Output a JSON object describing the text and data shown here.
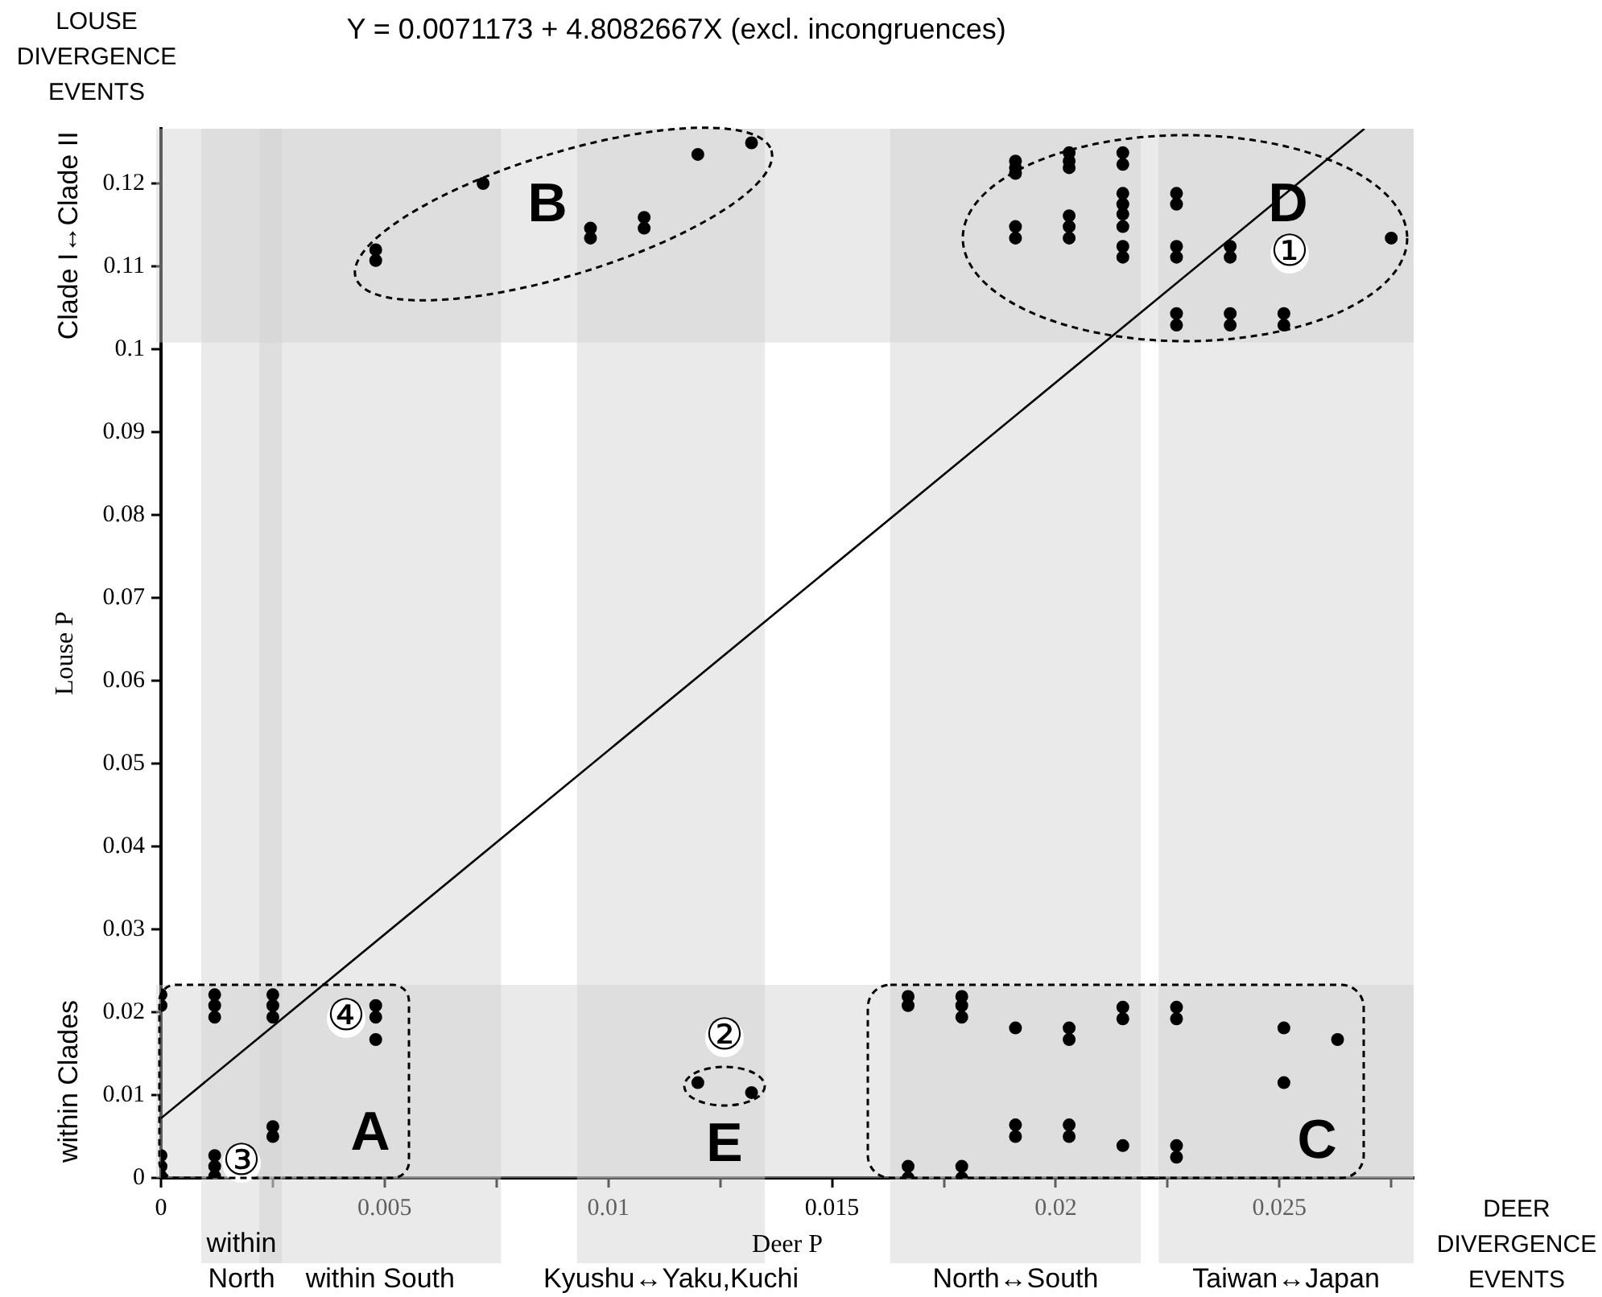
{
  "chart_data": {
    "type": "scatter",
    "title": "Y = 0.0071173 + 4.8082667X (excl. incongruences)",
    "xlabel": "Deer P",
    "ylabel": "Louse P",
    "xlim": [
      0,
      0.028
    ],
    "ylim": [
      0,
      0.1266
    ],
    "xticks": [
      0,
      {
        "value": 0.0025,
        "label": null
      },
      0.005,
      {
        "value": 0.0075,
        "label": null
      },
      0.01,
      {
        "value": 0.0125,
        "label": null
      },
      0.015,
      {
        "value": 0.0175,
        "label": null
      },
      0.02,
      {
        "value": 0.0225,
        "label": null
      },
      0.025,
      {
        "value": 0.0275,
        "label": null
      }
    ],
    "yticks": [
      0,
      0.01,
      0.02,
      0.03,
      0.04,
      0.05,
      0.06,
      0.07,
      0.08,
      0.09,
      0.1,
      0.11,
      0.12
    ],
    "grid": false,
    "legend": false,
    "marker": "circle",
    "series": [
      {
        "color": "#000000",
        "x": [
          0.0048,
          0.0048,
          0.0072,
          0.0096,
          0.0096,
          0.0108,
          0.0108,
          0.012,
          0.0132,
          0.0191,
          0.0191,
          0.0191,
          0.0191,
          0.0191,
          0.0203,
          0.0203,
          0.0203,
          0.0203,
          0.0203,
          0.0203,
          0.0215,
          0.0215,
          0.0215,
          0.0215,
          0.0215,
          0.0215,
          0.0215,
          0.0215,
          0.0227,
          0.0227,
          0.0227,
          0.0227,
          0.0227,
          0.0227,
          0.0239,
          0.0239,
          0.0239,
          0.0239,
          0.0251,
          0.0251,
          0.0275,
          0,
          0,
          0,
          0,
          0,
          0.0012,
          0.0012,
          0.0012,
          0.0012,
          0.0012,
          0.0012,
          0.0025,
          0.0025,
          0.0025,
          0.0025,
          0.0025,
          0.0048,
          0.0048,
          0.0048,
          0.012,
          0.0132,
          0.0167,
          0.0167,
          0.0167,
          0.0167,
          0.0179,
          0.0179,
          0.0179,
          0.0179,
          0.0179,
          0.0191,
          0.0191,
          0.0191,
          0.0203,
          0.0203,
          0.0203,
          0.0203,
          0.0215,
          0.0215,
          0.0215,
          0.0227,
          0.0227,
          0.0227,
          0.0227,
          0.0251,
          0.0251,
          0.0263
        ],
        "values": [
          0.112,
          0.1107,
          0.12,
          0.1146,
          0.1134,
          0.1159,
          0.1146,
          0.1235,
          0.1249,
          0.1227,
          0.1219,
          0.1212,
          0.1148,
          0.1134,
          0.1237,
          0.1227,
          0.1219,
          0.1161,
          0.1148,
          0.1134,
          0.1237,
          0.1223,
          0.1188,
          0.1175,
          0.1163,
          0.1148,
          0.1124,
          0.1111,
          0.1188,
          0.1175,
          0.1124,
          0.1111,
          0.1043,
          0.1029,
          0.1124,
          0.1111,
          0.1043,
          0.1029,
          0.1043,
          0.1029,
          0.1134,
          0.0221,
          0.0208,
          0.0027,
          0.0014,
          0.0002,
          0.0221,
          0.0208,
          0.0194,
          0.0027,
          0.0014,
          0.0002,
          0.0221,
          0.0208,
          0.0194,
          0.0062,
          0.005,
          0.0208,
          0.0194,
          0.0167,
          0.0115,
          0.0103,
          0.0219,
          0.0208,
          0.0014,
          0.0,
          0.0219,
          0.0208,
          0.0194,
          0.0014,
          0.0,
          0.0181,
          0.0064,
          0.005,
          0.0181,
          0.0167,
          0.0064,
          0.005,
          0.0206,
          0.0192,
          0.0039,
          0.0206,
          0.0192,
          0.0039,
          0.0025,
          0.0181,
          0.0115,
          0.0167
        ]
      },
      {
        "type": "line",
        "color": "#000000",
        "marker": "none",
        "x": [
          0,
          0.0269
        ],
        "values": [
          0.0072,
          0.1266
        ]
      }
    ],
    "bands": [
      {
        "axis": "x",
        "from": 0.0009,
        "to": 0.0027,
        "label": "within\nNorth",
        "color": "#d0d0d0"
      },
      {
        "axis": "x",
        "from": 0.0022,
        "to": 0.0076,
        "label": "within South",
        "color": "#d0d0d0"
      },
      {
        "axis": "x",
        "from": 0.0093,
        "to": 0.0135,
        "label": "Kyushu↔Yaku,Kuchi",
        "color": "#d0d0d0"
      },
      {
        "axis": "x",
        "from": 0.0163,
        "to": 0.0219,
        "label": "North↔South",
        "color": "#d0d0d0"
      },
      {
        "axis": "x",
        "from": 0.0223,
        "to": 0.028,
        "label": "Taiwan↔Japan",
        "color": "#d0d0d0"
      },
      {
        "axis": "y",
        "from": 0.1008,
        "to": 0.1266,
        "label": "Clade I↔Clade II",
        "color": "#d0d0d0"
      },
      {
        "axis": "y",
        "from": 0,
        "to": 0.0233,
        "label": "within Clades",
        "color": "#d0d0d0"
      }
    ],
    "annotations": [
      "LOUSE\nDIVERGENCE\nEVENTS",
      "DEER\nDIVERGENCE\nEVENTS",
      "A",
      "B",
      "C",
      "D",
      "E",
      "①",
      "②",
      "③",
      "④"
    ]
  }
}
